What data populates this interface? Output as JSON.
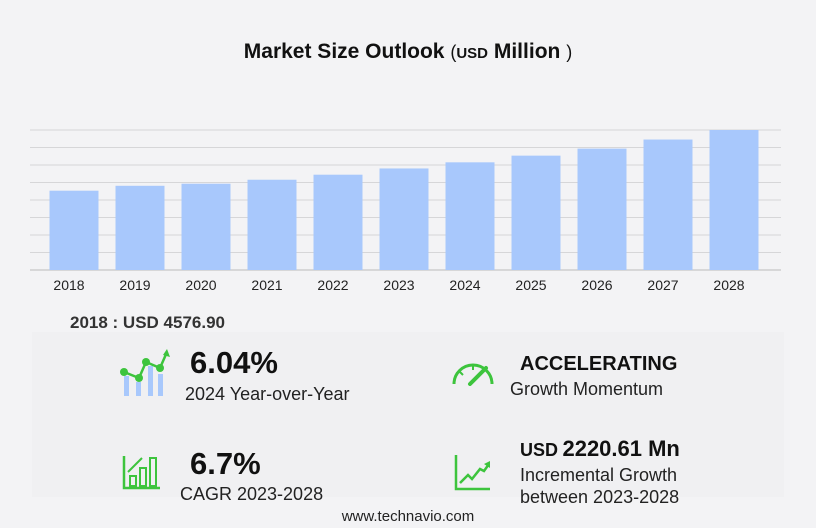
{
  "title": {
    "main": "Market Size Outlook",
    "open": "(",
    "unit": "USD",
    "unit_label": "Million",
    "close": ")"
  },
  "chart_data": {
    "type": "bar",
    "title": "Market Size Outlook (USD Million)",
    "categories": [
      "2018",
      "2019",
      "2020",
      "2021",
      "2022",
      "2023",
      "2024",
      "2025",
      "2026",
      "2027",
      "2028"
    ],
    "values": [
      4576.9,
      4860,
      4980,
      5210,
      5500,
      5860,
      6215,
      6600,
      7005,
      7530,
      8080
    ],
    "ylim": [
      0,
      8080
    ],
    "grid": true,
    "bar_color": "#a8c8fc"
  },
  "base_label": "2018 : USD  4576.90",
  "kpis": {
    "yoy": {
      "value": "6.04%",
      "label": "2024 Year-over-Year"
    },
    "momentum": {
      "value": "ACCELERATING",
      "label": "Growth Momentum"
    },
    "cagr": {
      "value": "6.7%",
      "label": "CAGR 2023-2028"
    },
    "incremental": {
      "prefix": "USD",
      "value": "2220.61 Mn",
      "label1": "Incremental Growth",
      "label2": "between 2023-2028"
    }
  },
  "colors": {
    "accent_green": "#3dc43d",
    "bar": "#a8c8fc"
  },
  "footer": "www.technavio.com"
}
